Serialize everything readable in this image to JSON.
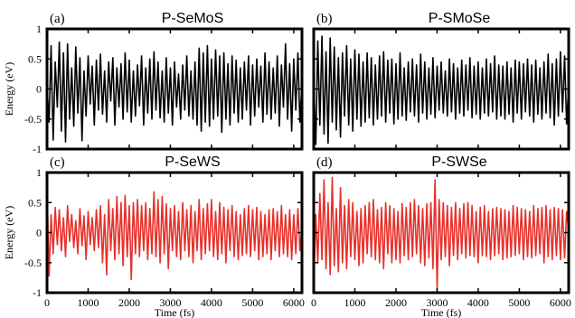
{
  "chart_data": [
    {
      "type": "line",
      "panel": "(a)",
      "title": "P-SeMoS",
      "series_color": "#000000",
      "ylabel": "Energy (eV)",
      "xlabel": "",
      "xlim": [
        0,
        6200
      ],
      "ylim": [
        -1,
        1
      ],
      "x_ticks": [],
      "y_ticks": [
        "1",
        "0.5",
        "0",
        "-0.5",
        "-1"
      ],
      "x": [
        0,
        50,
        100,
        150,
        200,
        250,
        300,
        350,
        400,
        450,
        500,
        550,
        600,
        650,
        700,
        750,
        800,
        850,
        900,
        950,
        1000,
        1050,
        1100,
        1150,
        1200,
        1250,
        1300,
        1350,
        1400,
        1450,
        1500,
        1550,
        1600,
        1650,
        1700,
        1750,
        1800,
        1850,
        1900,
        1950,
        2000,
        2050,
        2100,
        2150,
        2200,
        2250,
        2300,
        2350,
        2400,
        2450,
        2500,
        2550,
        2600,
        2650,
        2700,
        2750,
        2800,
        2850,
        2900,
        2950,
        3000,
        3050,
        3100,
        3150,
        3200,
        3250,
        3300,
        3350,
        3400,
        3450,
        3500,
        3550,
        3600,
        3650,
        3700,
        3750,
        3800,
        3850,
        3900,
        3950,
        4000,
        4050,
        4100,
        4150,
        4200,
        4250,
        4300,
        4350,
        4400,
        4450,
        4500,
        4550,
        4600,
        4650,
        4700,
        4750,
        4800,
        4850,
        4900,
        4950,
        5000,
        5050,
        5100,
        5150,
        5200,
        5250,
        5300,
        5350,
        5400,
        5450,
        5500,
        5550,
        5600,
        5650,
        5700,
        5750,
        5800,
        5850,
        5900,
        5950,
        6000,
        6050,
        6100,
        6150,
        6200
      ],
      "y": [
        0.05,
        -0.55,
        0.72,
        -0.85,
        0.45,
        -0.3,
        0.78,
        -0.7,
        0.6,
        -0.88,
        0.75,
        -0.5,
        0.35,
        -0.62,
        0.7,
        -0.4,
        0.52,
        -0.86,
        0.3,
        -0.45,
        0.55,
        -0.25,
        0.38,
        -0.6,
        0.48,
        -0.35,
        0.58,
        -0.42,
        0.3,
        -0.55,
        0.45,
        -0.2,
        0.52,
        -0.6,
        0.35,
        -0.3,
        0.42,
        -0.5,
        0.6,
        -0.38,
        0.48,
        -0.55,
        0.3,
        -0.45,
        0.4,
        -0.28,
        0.55,
        -0.6,
        0.35,
        -0.4,
        0.5,
        -0.5,
        0.62,
        -0.35,
        0.45,
        -0.48,
        0.3,
        -0.55,
        0.52,
        -0.4,
        0.35,
        -0.6,
        0.45,
        -0.3,
        0.25,
        -0.5,
        0.4,
        -0.35,
        0.55,
        -0.45,
        0.3,
        -0.5,
        0.45,
        -0.6,
        0.68,
        -0.7,
        0.6,
        -0.55,
        0.72,
        -0.62,
        0.5,
        -0.5,
        0.65,
        -0.45,
        0.55,
        -0.72,
        0.6,
        -0.5,
        0.42,
        -0.6,
        0.55,
        -0.4,
        0.48,
        -0.55,
        0.35,
        -0.5,
        0.45,
        -0.35,
        0.55,
        -0.6,
        0.4,
        -0.45,
        0.5,
        -0.3,
        0.38,
        -0.55,
        0.6,
        -0.42,
        0.45,
        -0.5,
        0.35,
        -0.4,
        0.55,
        -0.62,
        0.4,
        -0.3,
        0.75,
        -0.5,
        0.42,
        -0.7,
        0.5,
        -0.35,
        0.6,
        -0.55,
        0.1
      ]
    },
    {
      "type": "line",
      "panel": "(b)",
      "title": "P-SMoSe",
      "series_color": "#000000",
      "ylabel": "",
      "xlabel": "",
      "xlim": [
        0,
        6200
      ],
      "ylim": [
        -1,
        1
      ],
      "x_ticks": [],
      "y_ticks": [],
      "x": [
        0,
        50,
        100,
        150,
        200,
        250,
        300,
        350,
        400,
        450,
        500,
        550,
        600,
        650,
        700,
        750,
        800,
        850,
        900,
        950,
        1000,
        1050,
        1100,
        1150,
        1200,
        1250,
        1300,
        1350,
        1400,
        1450,
        1500,
        1550,
        1600,
        1650,
        1700,
        1750,
        1800,
        1850,
        1900,
        1950,
        2000,
        2050,
        2100,
        2150,
        2200,
        2250,
        2300,
        2350,
        2400,
        2450,
        2500,
        2550,
        2600,
        2650,
        2700,
        2750,
        2800,
        2850,
        2900,
        2950,
        3000,
        3050,
        3100,
        3150,
        3200,
        3250,
        3300,
        3350,
        3400,
        3450,
        3500,
        3550,
        3600,
        3650,
        3700,
        3750,
        3800,
        3850,
        3900,
        3950,
        4000,
        4050,
        4100,
        4150,
        4200,
        4250,
        4300,
        4350,
        4400,
        4450,
        4500,
        4550,
        4600,
        4650,
        4700,
        4750,
        4800,
        4850,
        4900,
        4950,
        5000,
        5050,
        5100,
        5150,
        5200,
        5250,
        5300,
        5350,
        5400,
        5450,
        5500,
        5550,
        5600,
        5650,
        5700,
        5750,
        5800,
        5850,
        5900,
        5950,
        6000,
        6050,
        6100,
        6150,
        6200
      ],
      "y": [
        0.1,
        -0.92,
        0.8,
        -0.6,
        0.88,
        -0.75,
        0.62,
        -0.9,
        0.85,
        -0.55,
        0.7,
        -0.68,
        0.52,
        -0.8,
        0.6,
        -0.45,
        0.72,
        -0.6,
        0.5,
        -0.7,
        0.65,
        -0.5,
        0.58,
        -0.62,
        0.45,
        -0.55,
        0.6,
        -0.48,
        0.52,
        -0.6,
        0.4,
        -0.5,
        0.55,
        -0.45,
        0.62,
        -0.55,
        0.48,
        -0.4,
        0.5,
        -0.58,
        0.42,
        -0.5,
        0.6,
        -0.45,
        0.35,
        -0.52,
        0.45,
        -0.38,
        0.5,
        -0.45,
        0.4,
        -0.55,
        0.58,
        -0.4,
        0.45,
        -0.5,
        0.35,
        -0.42,
        0.52,
        -0.48,
        0.38,
        -0.35,
        0.45,
        -0.4,
        0.3,
        -0.45,
        0.5,
        -0.38,
        0.42,
        -0.5,
        0.35,
        -0.4,
        0.48,
        -0.45,
        0.4,
        -0.35,
        0.52,
        -0.48,
        0.38,
        -0.42,
        0.45,
        -0.5,
        0.35,
        -0.4,
        0.5,
        -0.45,
        0.42,
        -0.38,
        0.55,
        -0.5,
        0.4,
        -0.45,
        0.38,
        -0.5,
        0.45,
        -0.42,
        0.35,
        -0.55,
        0.48,
        -0.4,
        0.45,
        -0.5,
        0.42,
        -0.38,
        0.5,
        -0.45,
        0.4,
        -0.55,
        0.48,
        -0.42,
        0.35,
        -0.5,
        0.45,
        -0.4,
        0.58,
        -0.48,
        0.42,
        -0.6,
        0.5,
        -0.45,
        0.62,
        -0.38,
        0.55,
        -0.58,
        0.05
      ]
    },
    {
      "type": "line",
      "panel": "(c)",
      "title": "P-SeWS",
      "series_color": "#e8302a",
      "ylabel": "Energy (eV)",
      "xlabel": "Time (fs)",
      "xlim": [
        0,
        6200
      ],
      "ylim": [
        -1,
        1
      ],
      "x_ticks": [
        "0",
        "1000",
        "2000",
        "3000",
        "4000",
        "5000",
        "6000"
      ],
      "y_ticks": [
        "1",
        "0.5",
        "0",
        "-0.5",
        "-1"
      ],
      "x": [
        0,
        50,
        100,
        150,
        200,
        250,
        300,
        350,
        400,
        450,
        500,
        550,
        600,
        650,
        700,
        750,
        800,
        850,
        900,
        950,
        1000,
        1050,
        1100,
        1150,
        1200,
        1250,
        1300,
        1350,
        1400,
        1450,
        1500,
        1550,
        1600,
        1650,
        1700,
        1750,
        1800,
        1850,
        1900,
        1950,
        2000,
        2050,
        2100,
        2150,
        2200,
        2250,
        2300,
        2350,
        2400,
        2450,
        2500,
        2550,
        2600,
        2650,
        2700,
        2750,
        2800,
        2850,
        2900,
        2950,
        3000,
        3050,
        3100,
        3150,
        3200,
        3250,
        3300,
        3350,
        3400,
        3450,
        3500,
        3550,
        3600,
        3650,
        3700,
        3750,
        3800,
        3850,
        3900,
        3950,
        4000,
        4050,
        4100,
        4150,
        4200,
        4250,
        4300,
        4350,
        4400,
        4450,
        4500,
        4550,
        4600,
        4650,
        4700,
        4750,
        4800,
        4850,
        4900,
        4950,
        5000,
        5050,
        5100,
        5150,
        5200,
        5250,
        5300,
        5350,
        5400,
        5450,
        5500,
        5550,
        5600,
        5650,
        5700,
        5750,
        5800,
        5850,
        5900,
        5950,
        6000,
        6050,
        6100,
        6150,
        6200
      ],
      "y": [
        0.8,
        -0.72,
        0.3,
        -0.35,
        0.42,
        -0.2,
        0.38,
        -0.3,
        0.25,
        -0.4,
        0.45,
        -0.15,
        0.3,
        -0.25,
        0.2,
        -0.35,
        0.4,
        -0.22,
        0.28,
        -0.45,
        0.35,
        -0.2,
        0.25,
        -0.3,
        0.38,
        -0.25,
        0.45,
        -0.5,
        0.3,
        -0.7,
        0.55,
        -0.3,
        0.4,
        -0.45,
        0.6,
        -0.35,
        0.5,
        -0.55,
        0.62,
        -0.4,
        0.45,
        -0.78,
        0.5,
        -0.35,
        0.55,
        -0.4,
        0.45,
        -0.3,
        0.5,
        -0.45,
        0.4,
        -0.35,
        0.68,
        -0.4,
        0.55,
        -0.5,
        0.6,
        -0.35,
        0.48,
        -0.6,
        0.4,
        -0.3,
        0.45,
        -0.4,
        0.35,
        -0.45,
        0.5,
        -0.3,
        0.38,
        -0.4,
        0.45,
        -0.5,
        0.35,
        -0.3,
        0.55,
        -0.45,
        0.4,
        -0.35,
        0.48,
        -0.3,
        0.55,
        -0.4,
        0.35,
        -0.45,
        0.5,
        -0.35,
        0.42,
        -0.5,
        0.38,
        -0.3,
        0.45,
        -0.4,
        0.35,
        -0.45,
        0.3,
        -0.38,
        0.4,
        -0.35,
        0.45,
        -0.4,
        0.38,
        -0.3,
        0.42,
        -0.45,
        0.35,
        -0.4,
        0.3,
        -0.35,
        0.38,
        -0.45,
        0.4,
        -0.3,
        0.35,
        -0.4,
        0.45,
        -0.35,
        0.3,
        -0.4,
        0.38,
        -0.45,
        0.3,
        -0.35,
        0.4,
        -0.3,
        0.1
      ]
    },
    {
      "type": "line",
      "panel": "(d)",
      "title": "P-SWSe",
      "series_color": "#e8302a",
      "ylabel": "",
      "xlabel": "Time (fs)",
      "xlim": [
        0,
        6200
      ],
      "ylim": [
        -1,
        1
      ],
      "x_ticks": [
        "0",
        "1000",
        "2000",
        "3000",
        "4000",
        "5000",
        "6000"
      ],
      "y_ticks": [],
      "x": [
        0,
        50,
        100,
        150,
        200,
        250,
        300,
        350,
        400,
        450,
        500,
        550,
        600,
        650,
        700,
        750,
        800,
        850,
        900,
        950,
        1000,
        1050,
        1100,
        1150,
        1200,
        1250,
        1300,
        1350,
        1400,
        1450,
        1500,
        1550,
        1600,
        1650,
        1700,
        1750,
        1800,
        1850,
        1900,
        1950,
        2000,
        2050,
        2100,
        2150,
        2200,
        2250,
        2300,
        2350,
        2400,
        2450,
        2500,
        2550,
        2600,
        2650,
        2700,
        2750,
        2800,
        2850,
        2900,
        2950,
        3000,
        3050,
        3100,
        3150,
        3200,
        3250,
        3300,
        3350,
        3400,
        3450,
        3500,
        3550,
        3600,
        3650,
        3700,
        3750,
        3800,
        3850,
        3900,
        3950,
        4000,
        4050,
        4100,
        4150,
        4200,
        4250,
        4300,
        4350,
        4400,
        4450,
        4500,
        4550,
        4600,
        4650,
        4700,
        4750,
        4800,
        4850,
        4900,
        4950,
        5000,
        5050,
        5100,
        5150,
        5200,
        5250,
        5300,
        5350,
        5400,
        5450,
        5500,
        5550,
        5600,
        5650,
        5700,
        5750,
        5800,
        5850,
        5900,
        5950,
        6000,
        6050,
        6100,
        6150,
        6200
      ],
      "y": [
        -0.9,
        0.3,
        -0.5,
        0.65,
        -0.45,
        0.88,
        -0.6,
        0.5,
        -0.7,
        0.92,
        -0.55,
        0.4,
        -0.65,
        0.75,
        -0.5,
        0.45,
        -0.6,
        0.55,
        -0.4,
        0.5,
        -0.45,
        0.35,
        -0.55,
        0.4,
        -0.5,
        0.45,
        -0.35,
        0.5,
        -0.4,
        0.55,
        -0.45,
        0.38,
        -0.5,
        0.42,
        -0.6,
        0.5,
        -0.35,
        0.45,
        -0.5,
        0.4,
        -0.45,
        0.35,
        -0.5,
        0.48,
        -0.38,
        0.42,
        -0.45,
        0.5,
        -0.4,
        0.55,
        -0.35,
        0.45,
        -0.5,
        0.4,
        -0.55,
        0.48,
        -0.42,
        0.5,
        -0.6,
        0.88,
        -0.95,
        0.55,
        -0.45,
        0.5,
        -0.4,
        0.45,
        -0.55,
        0.42,
        -0.38,
        0.5,
        -0.45,
        0.4,
        -0.35,
        0.48,
        -0.42,
        0.5,
        -0.38,
        0.45,
        -0.4,
        0.35,
        -0.5,
        0.42,
        -0.38,
        0.45,
        -0.4,
        0.35,
        -0.45,
        0.4,
        -0.38,
        0.42,
        -0.35,
        0.4,
        -0.45,
        0.38,
        -0.42,
        0.35,
        -0.4,
        0.45,
        -0.38,
        0.42,
        -0.35,
        0.4,
        -0.45,
        0.38,
        -0.4,
        0.35,
        -0.42,
        0.45,
        -0.38,
        0.4,
        -0.35,
        0.42,
        -0.5,
        0.45,
        -0.4,
        0.38,
        -0.45,
        0.42,
        -0.38,
        0.4,
        -0.45,
        0.38,
        -0.42,
        0.35,
        0.05
      ]
    }
  ]
}
